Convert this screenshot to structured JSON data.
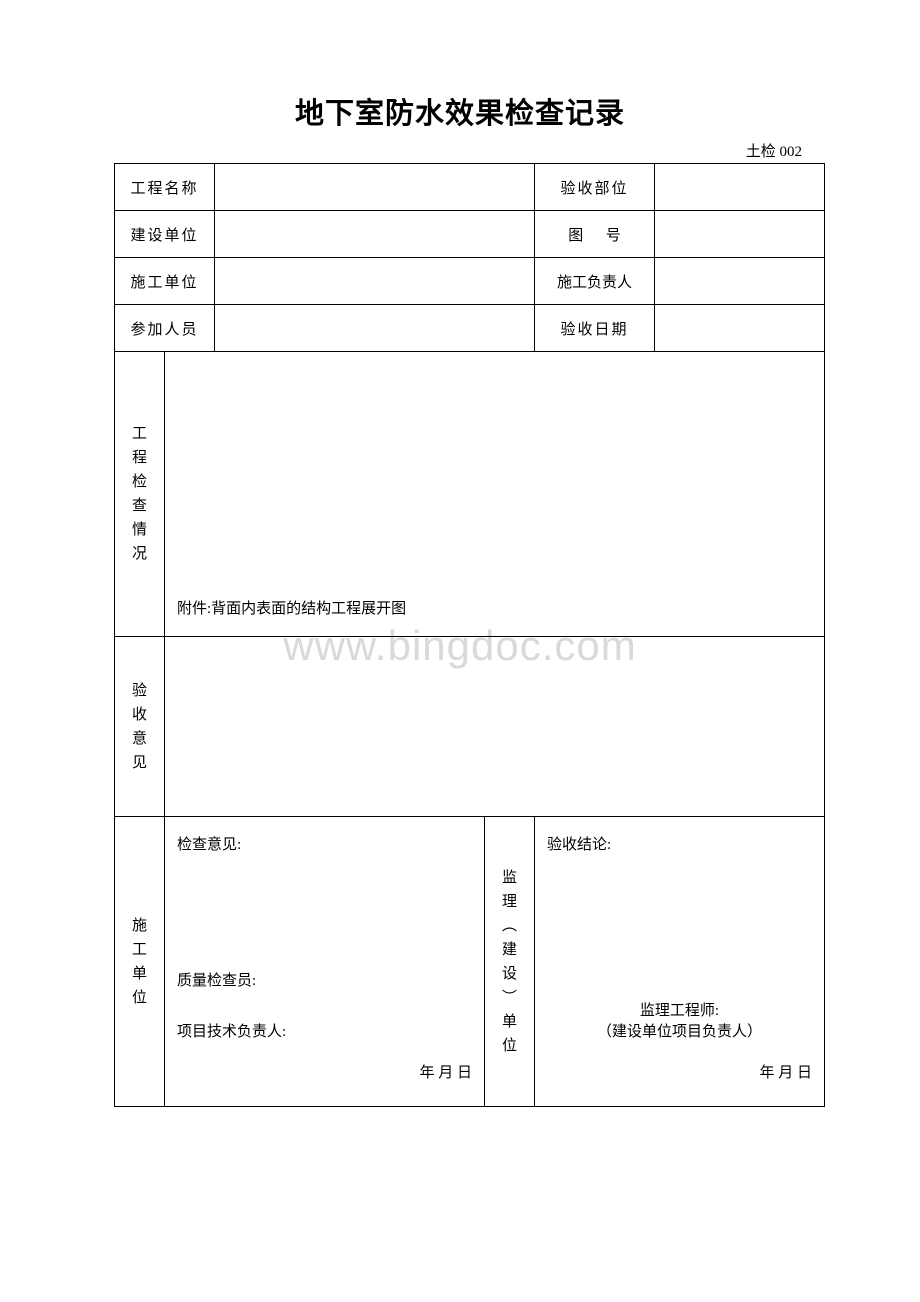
{
  "title": "地下室防水效果检查记录",
  "form_code": "土检 002",
  "watermark": "www.bingdoc.com",
  "header": {
    "row1": {
      "label_left": "工程名称",
      "label_right": "验收部位"
    },
    "row2": {
      "label_left": "建设单位",
      "label_right_char1": "图",
      "label_right_char2": "号"
    },
    "row3": {
      "label_left": "施工单位",
      "label_right": "施工负责人"
    },
    "row4": {
      "label_left": "参加人员",
      "label_right": "验收日期"
    }
  },
  "sections": {
    "inspection": {
      "label": "工程检查情况",
      "attachment_text": "附件:背面内表面的结构工程展开图"
    },
    "opinion": {
      "label": "验收意见"
    },
    "construction_unit": {
      "label": "施工单位",
      "check_opinion": "检查意见:",
      "quality_inspector": "质量检查员:",
      "tech_lead": "项目技术负责人:",
      "date": "年    月    日"
    },
    "supervision_unit": {
      "label": "监理︵建设︶单位",
      "conclusion": "验收结论:",
      "engineer": "监理工程师:",
      "owner_lead": "（建设单位项目负责人）",
      "date": "年    月    日"
    }
  },
  "colors": {
    "text": "#000000",
    "border": "#000000",
    "background": "#ffffff",
    "watermark": "#d9d9d9"
  }
}
